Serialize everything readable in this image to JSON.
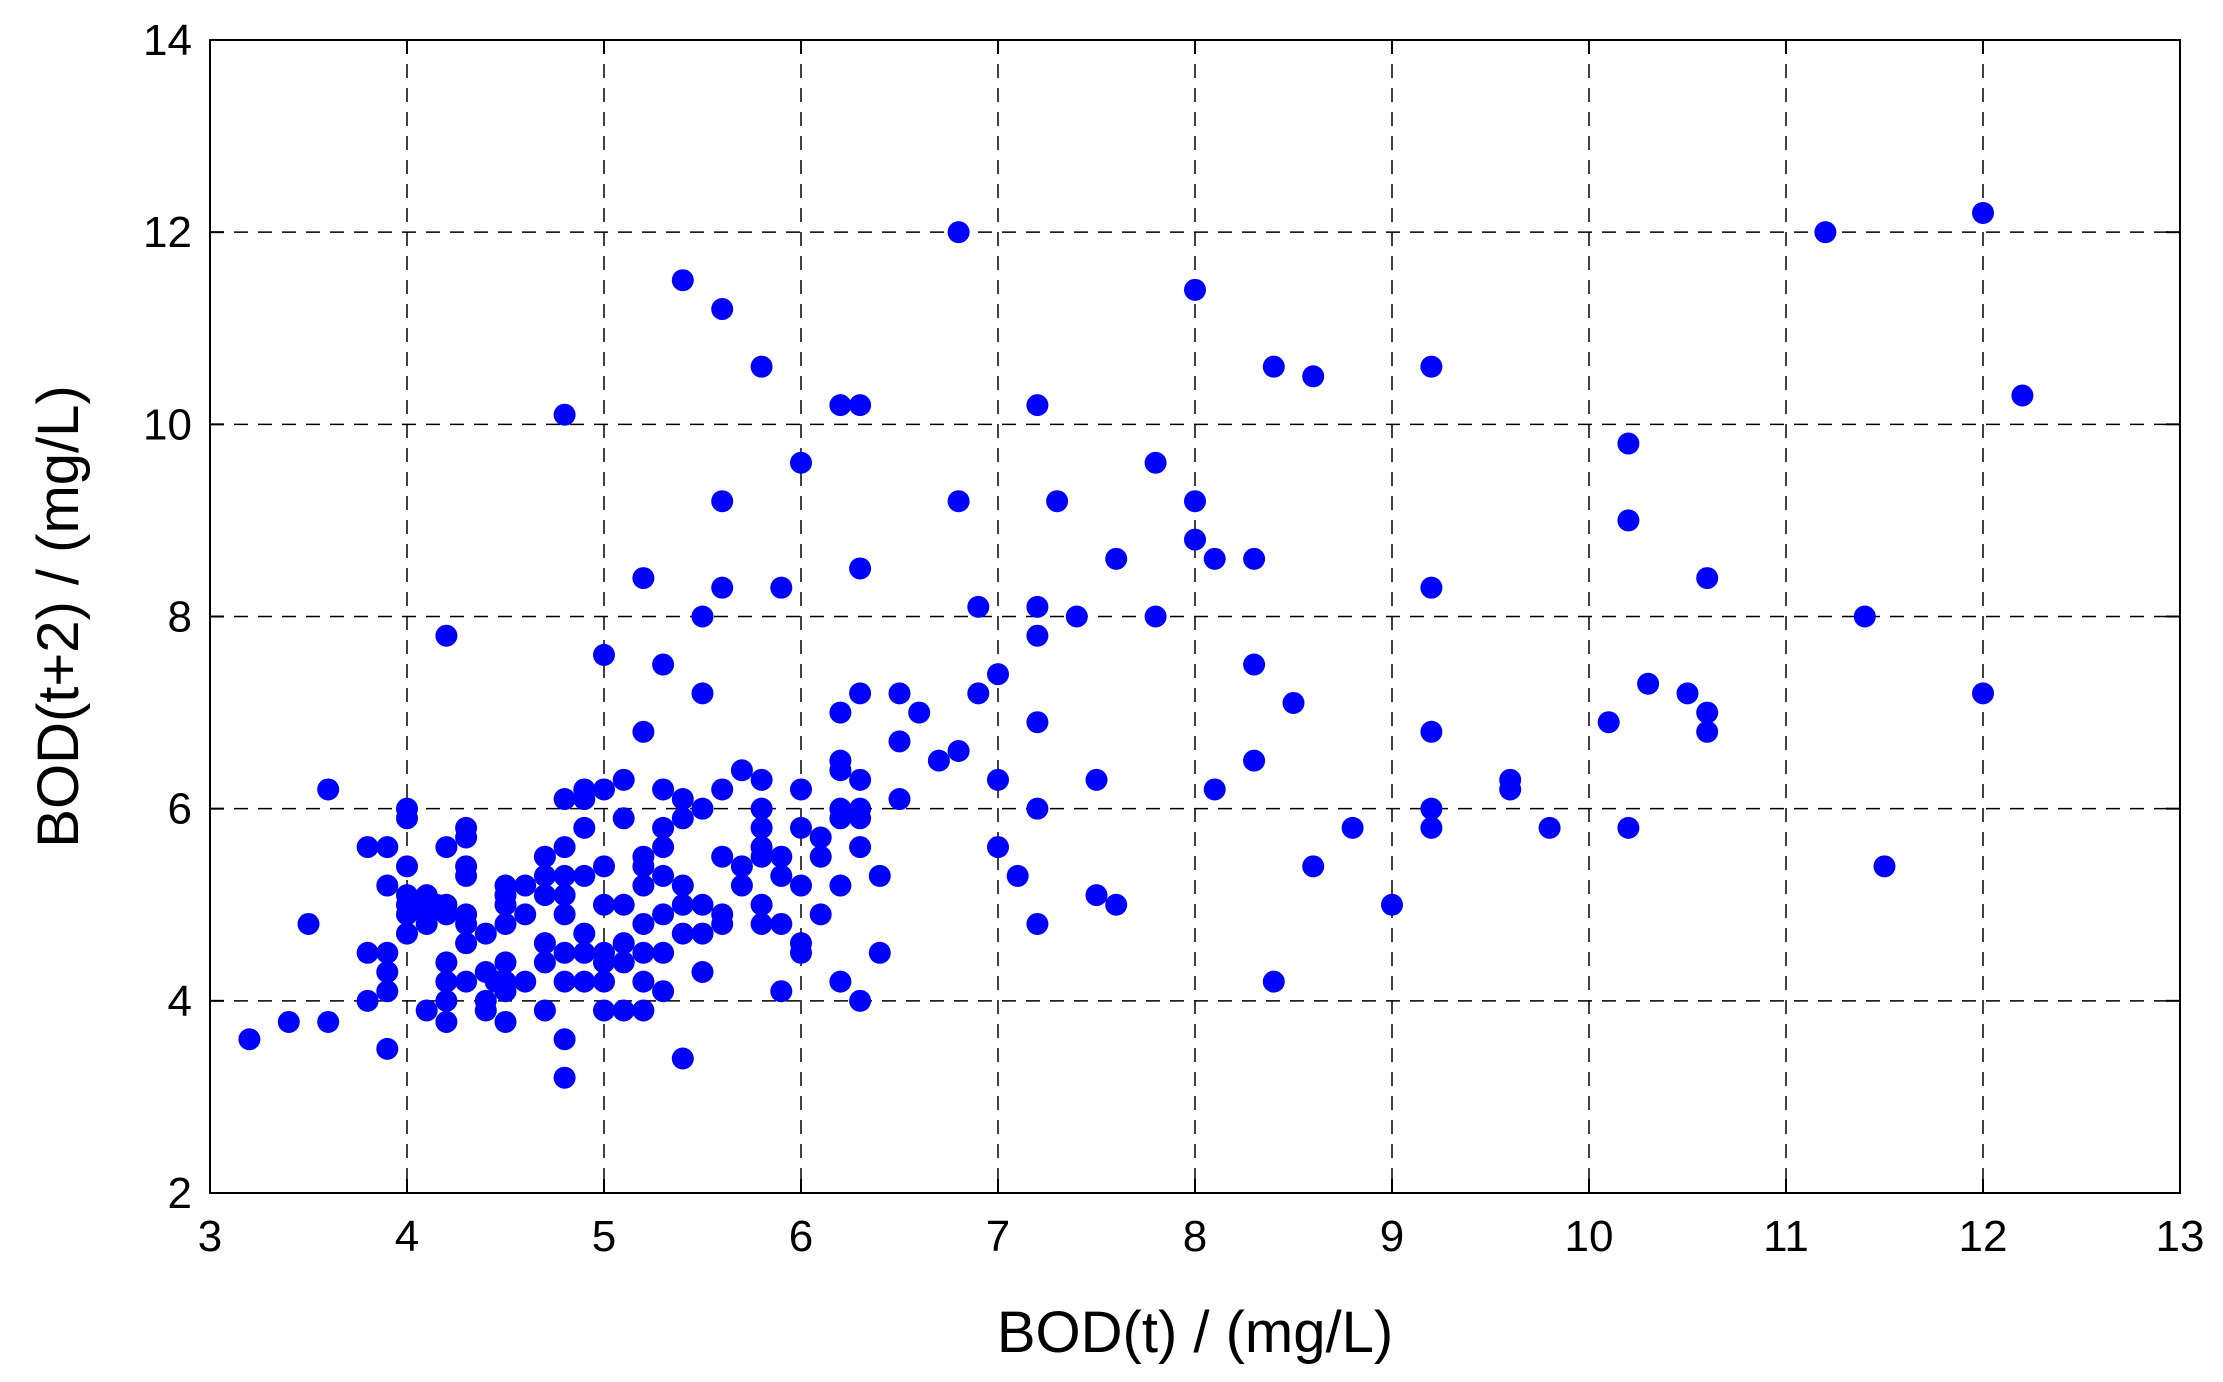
{
  "chart_data": {
    "type": "scatter",
    "xlabel": "BOD(t) / (mg/L)",
    "ylabel": "BOD(t+2) / (mg/L)",
    "xlim": [
      3,
      13
    ],
    "ylim": [
      2,
      14
    ],
    "xticks": [
      3,
      4,
      5,
      6,
      7,
      8,
      9,
      10,
      11,
      12,
      13
    ],
    "yticks": [
      2,
      4,
      6,
      8,
      10,
      12,
      14
    ],
    "grid": true,
    "grid_style": "dashed",
    "marker_color": "#0000ff",
    "series": [
      {
        "points": [
          [
            3.2,
            3.6
          ],
          [
            3.4,
            3.78
          ],
          [
            3.5,
            4.8
          ],
          [
            3.6,
            3.78
          ],
          [
            3.6,
            6.2
          ],
          [
            3.8,
            4.5
          ],
          [
            3.8,
            5.6
          ],
          [
            3.8,
            4.0
          ],
          [
            3.9,
            5.2
          ],
          [
            3.9,
            4.5
          ],
          [
            3.9,
            4.1
          ],
          [
            3.9,
            4.3
          ],
          [
            3.9,
            3.5
          ],
          [
            3.9,
            5.6
          ],
          [
            4.0,
            4.7
          ],
          [
            4.0,
            4.9
          ],
          [
            4.0,
            5.0
          ],
          [
            4.0,
            5.1
          ],
          [
            4.0,
            5.4
          ],
          [
            4.0,
            5.9
          ],
          [
            4.0,
            6.0
          ],
          [
            4.1,
            3.9
          ],
          [
            4.1,
            4.8
          ],
          [
            4.1,
            4.9
          ],
          [
            4.1,
            5.0
          ],
          [
            4.1,
            5.1
          ],
          [
            4.15,
            5.0
          ],
          [
            4.2,
            4.0
          ],
          [
            4.2,
            4.2
          ],
          [
            4.2,
            4.4
          ],
          [
            4.2,
            4.9
          ],
          [
            4.2,
            5.0
          ],
          [
            4.2,
            5.6
          ],
          [
            4.2,
            7.8
          ],
          [
            4.2,
            3.78
          ],
          [
            4.3,
            4.2
          ],
          [
            4.3,
            4.6
          ],
          [
            4.3,
            4.8
          ],
          [
            4.3,
            4.9
          ],
          [
            4.3,
            5.3
          ],
          [
            4.3,
            5.4
          ],
          [
            4.3,
            5.7
          ],
          [
            4.3,
            5.8
          ],
          [
            4.4,
            3.9
          ],
          [
            4.4,
            4.0
          ],
          [
            4.4,
            4.3
          ],
          [
            4.4,
            4.7
          ],
          [
            4.45,
            4.2
          ],
          [
            4.5,
            3.78
          ],
          [
            4.5,
            4.1
          ],
          [
            4.5,
            4.2
          ],
          [
            4.5,
            4.4
          ],
          [
            4.5,
            4.8
          ],
          [
            4.5,
            5.0
          ],
          [
            4.5,
            5.1
          ],
          [
            4.5,
            5.2
          ],
          [
            4.6,
            4.2
          ],
          [
            4.6,
            4.9
          ],
          [
            4.6,
            5.2
          ],
          [
            4.7,
            3.9
          ],
          [
            4.7,
            4.4
          ],
          [
            4.7,
            4.6
          ],
          [
            4.7,
            5.1
          ],
          [
            4.7,
            5.3
          ],
          [
            4.7,
            5.5
          ],
          [
            4.8,
            3.2
          ],
          [
            4.8,
            3.6
          ],
          [
            4.8,
            4.2
          ],
          [
            4.8,
            4.5
          ],
          [
            4.8,
            4.9
          ],
          [
            4.8,
            5.1
          ],
          [
            4.8,
            5.3
          ],
          [
            4.8,
            5.6
          ],
          [
            4.8,
            6.1
          ],
          [
            4.8,
            10.1
          ],
          [
            4.9,
            4.2
          ],
          [
            4.9,
            4.5
          ],
          [
            4.9,
            4.7
          ],
          [
            4.9,
            5.3
          ],
          [
            4.9,
            5.8
          ],
          [
            4.9,
            6.1
          ],
          [
            4.9,
            6.2
          ],
          [
            5.0,
            3.9
          ],
          [
            5.0,
            4.2
          ],
          [
            5.0,
            4.4
          ],
          [
            5.0,
            4.5
          ],
          [
            5.0,
            5.0
          ],
          [
            5.0,
            5.4
          ],
          [
            5.0,
            6.2
          ],
          [
            5.0,
            7.6
          ],
          [
            5.1,
            3.9
          ],
          [
            5.1,
            4.4
          ],
          [
            5.1,
            4.6
          ],
          [
            5.1,
            5.0
          ],
          [
            5.1,
            5.9
          ],
          [
            5.1,
            6.3
          ],
          [
            5.2,
            3.9
          ],
          [
            5.2,
            4.2
          ],
          [
            5.2,
            4.5
          ],
          [
            5.2,
            4.8
          ],
          [
            5.2,
            5.2
          ],
          [
            5.2,
            5.4
          ],
          [
            5.2,
            5.5
          ],
          [
            5.2,
            6.8
          ],
          [
            5.2,
            8.4
          ],
          [
            5.3,
            4.1
          ],
          [
            5.3,
            4.5
          ],
          [
            5.3,
            4.9
          ],
          [
            5.3,
            5.3
          ],
          [
            5.3,
            5.6
          ],
          [
            5.3,
            5.8
          ],
          [
            5.3,
            6.2
          ],
          [
            5.3,
            7.5
          ],
          [
            5.4,
            3.4
          ],
          [
            5.4,
            4.7
          ],
          [
            5.4,
            5.0
          ],
          [
            5.4,
            5.2
          ],
          [
            5.4,
            5.9
          ],
          [
            5.4,
            6.1
          ],
          [
            5.4,
            11.5
          ],
          [
            5.5,
            4.3
          ],
          [
            5.5,
            4.7
          ],
          [
            5.5,
            5.0
          ],
          [
            5.5,
            6.0
          ],
          [
            5.5,
            7.2
          ],
          [
            5.5,
            8.0
          ],
          [
            5.6,
            4.8
          ],
          [
            5.6,
            4.9
          ],
          [
            5.6,
            5.5
          ],
          [
            5.6,
            6.2
          ],
          [
            5.6,
            8.3
          ],
          [
            5.6,
            9.2
          ],
          [
            5.6,
            11.2
          ],
          [
            5.7,
            5.2
          ],
          [
            5.7,
            5.4
          ],
          [
            5.7,
            6.4
          ],
          [
            5.8,
            4.8
          ],
          [
            5.8,
            5.0
          ],
          [
            5.8,
            5.5
          ],
          [
            5.8,
            5.6
          ],
          [
            5.8,
            5.8
          ],
          [
            5.8,
            6.0
          ],
          [
            5.8,
            6.3
          ],
          [
            5.8,
            10.6
          ],
          [
            5.9,
            4.1
          ],
          [
            5.9,
            4.8
          ],
          [
            5.9,
            5.3
          ],
          [
            5.9,
            5.5
          ],
          [
            5.9,
            8.3
          ],
          [
            6.0,
            4.5
          ],
          [
            6.0,
            4.6
          ],
          [
            6.0,
            5.2
          ],
          [
            6.0,
            5.8
          ],
          [
            6.0,
            6.2
          ],
          [
            6.0,
            9.6
          ],
          [
            6.1,
            4.9
          ],
          [
            6.1,
            5.5
          ],
          [
            6.1,
            5.7
          ],
          [
            6.2,
            4.2
          ],
          [
            6.2,
            5.2
          ],
          [
            6.2,
            5.9
          ],
          [
            6.2,
            6.0
          ],
          [
            6.2,
            6.4
          ],
          [
            6.2,
            6.5
          ],
          [
            6.2,
            7.0
          ],
          [
            6.2,
            10.2
          ],
          [
            6.3,
            4.0
          ],
          [
            6.3,
            5.6
          ],
          [
            6.3,
            5.9
          ],
          [
            6.3,
            6.0
          ],
          [
            6.3,
            6.3
          ],
          [
            6.3,
            7.2
          ],
          [
            6.3,
            8.5
          ],
          [
            6.3,
            10.2
          ],
          [
            6.4,
            4.5
          ],
          [
            6.4,
            5.3
          ],
          [
            6.5,
            6.1
          ],
          [
            6.5,
            6.7
          ],
          [
            6.5,
            7.2
          ],
          [
            6.6,
            7.0
          ],
          [
            6.7,
            6.5
          ],
          [
            6.8,
            6.6
          ],
          [
            6.8,
            9.2
          ],
          [
            6.8,
            12.0
          ],
          [
            6.9,
            7.2
          ],
          [
            6.9,
            8.1
          ],
          [
            7.0,
            5.6
          ],
          [
            7.0,
            6.3
          ],
          [
            7.0,
            7.4
          ],
          [
            7.1,
            5.3
          ],
          [
            7.2,
            4.8
          ],
          [
            7.2,
            6.0
          ],
          [
            7.2,
            6.9
          ],
          [
            7.2,
            7.8
          ],
          [
            7.2,
            8.1
          ],
          [
            7.2,
            10.2
          ],
          [
            7.3,
            9.2
          ],
          [
            7.4,
            8.0
          ],
          [
            7.5,
            5.1
          ],
          [
            7.5,
            6.3
          ],
          [
            7.6,
            5.0
          ],
          [
            7.6,
            8.6
          ],
          [
            7.8,
            8.0
          ],
          [
            7.8,
            9.6
          ],
          [
            8.0,
            8.8
          ],
          [
            8.0,
            9.2
          ],
          [
            8.0,
            11.4
          ],
          [
            8.1,
            6.2
          ],
          [
            8.1,
            8.6
          ],
          [
            8.3,
            6.5
          ],
          [
            8.3,
            7.5
          ],
          [
            8.3,
            8.6
          ],
          [
            8.4,
            4.2
          ],
          [
            8.4,
            10.6
          ],
          [
            8.5,
            7.1
          ],
          [
            8.6,
            5.4
          ],
          [
            8.6,
            10.5
          ],
          [
            8.8,
            5.8
          ],
          [
            9.0,
            5.0
          ],
          [
            9.2,
            5.8
          ],
          [
            9.2,
            6.0
          ],
          [
            9.2,
            6.8
          ],
          [
            9.2,
            8.3
          ],
          [
            9.2,
            10.6
          ],
          [
            9.6,
            6.2
          ],
          [
            9.6,
            6.3
          ],
          [
            9.8,
            5.8
          ],
          [
            10.1,
            6.9
          ],
          [
            10.2,
            5.8
          ],
          [
            10.2,
            9.0
          ],
          [
            10.2,
            9.8
          ],
          [
            10.3,
            7.3
          ],
          [
            10.5,
            7.2
          ],
          [
            10.6,
            6.8
          ],
          [
            10.6,
            7.0
          ],
          [
            10.6,
            8.4
          ],
          [
            11.2,
            12.0
          ],
          [
            11.4,
            8.0
          ],
          [
            11.5,
            5.4
          ],
          [
            12.0,
            7.2
          ],
          [
            12.0,
            12.2
          ],
          [
            12.2,
            10.3
          ]
        ]
      }
    ]
  }
}
